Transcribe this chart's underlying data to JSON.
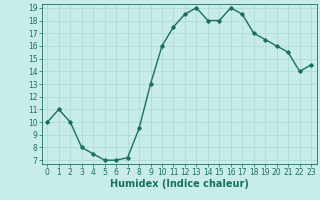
{
  "title": "",
  "xlabel": "Humidex (Indice chaleur)",
  "ylabel": "",
  "x": [
    0,
    1,
    2,
    3,
    4,
    5,
    6,
    7,
    8,
    9,
    10,
    11,
    12,
    13,
    14,
    15,
    16,
    17,
    18,
    19,
    20,
    21,
    22,
    23
  ],
  "y": [
    10,
    11,
    10,
    8,
    7.5,
    7,
    7,
    7.2,
    9.5,
    13,
    16,
    17.5,
    18.5,
    19,
    18,
    18,
    19,
    18.5,
    17,
    16.5,
    16,
    15.5,
    14,
    14.5
  ],
  "line_color": "#1a7060",
  "marker": "D",
  "marker_size": 1.8,
  "bg_color": "#c8ede8",
  "grid_color": "#aadad4",
  "tick_color": "#1a7060",
  "label_color": "#1a7060",
  "ylim": [
    7,
    19
  ],
  "yticks": [
    7,
    8,
    9,
    10,
    11,
    12,
    13,
    14,
    15,
    16,
    17,
    18,
    19
  ],
  "xticks": [
    0,
    1,
    2,
    3,
    4,
    5,
    6,
    7,
    8,
    9,
    10,
    11,
    12,
    13,
    14,
    15,
    16,
    17,
    18,
    19,
    20,
    21,
    22,
    23
  ],
  "xlim": [
    -0.5,
    23.5
  ],
  "line_width": 1.0,
  "xlabel_fontsize": 7,
  "tick_fontsize": 5.5
}
